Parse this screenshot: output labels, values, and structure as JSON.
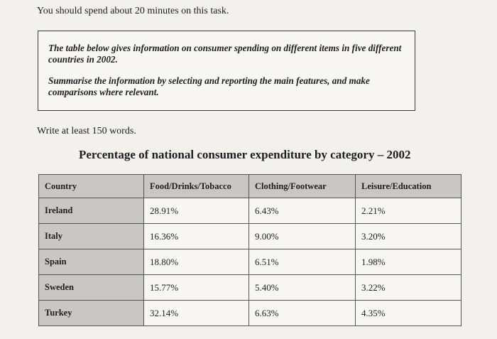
{
  "intro": "You should spend about 20 minutes on this task.",
  "task": {
    "paragraph1": "The table below gives information on consumer spending on different items in five different countries in 2002.",
    "paragraph2": "Summarise the information by selecting and reporting the main features, and make comparisons where relevant."
  },
  "word_limit": "Write at least 150 words.",
  "table": {
    "title": "Percentage of national consumer expenditure by category – 2002",
    "headers": [
      "Country",
      "Food/Drinks/Tobacco",
      "Clothing/Footwear",
      "Leisure/Education"
    ],
    "rows": [
      {
        "country": "Ireland",
        "food": "28.91%",
        "clothing": "6.43%",
        "leisure": "2.21%"
      },
      {
        "country": "Italy",
        "food": "16.36%",
        "clothing": "9.00%",
        "leisure": "3.20%"
      },
      {
        "country": "Spain",
        "food": "18.80%",
        "clothing": "6.51%",
        "leisure": "1.98%"
      },
      {
        "country": "Sweden",
        "food": "15.77%",
        "clothing": "5.40%",
        "leisure": "3.22%"
      },
      {
        "country": "Turkey",
        "food": "32.14%",
        "clothing": "6.63%",
        "leisure": "4.35%"
      }
    ]
  }
}
